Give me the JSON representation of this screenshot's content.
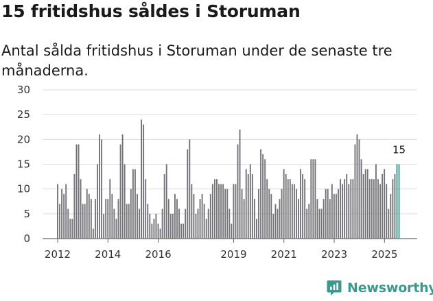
{
  "header": {
    "title": "15 fritidshus såldes i Storuman",
    "subtitle": "Antal sålda fritidshus i Storuman under de senaste tre månaderna."
  },
  "brand": {
    "name": "Newsworthy",
    "icon": "newsworthy-logo-icon",
    "color": "#3a9a8f"
  },
  "chart_data": {
    "type": "bar",
    "title": "15 fritidshus såldes i Storuman",
    "subtitle": "Antal sålda fritidshus i Storuman under de senaste tre månaderna.",
    "xlabel": "",
    "ylabel": "",
    "ylim": [
      0,
      30
    ],
    "yticks": [
      0,
      5,
      10,
      15,
      20,
      25,
      30
    ],
    "grid": true,
    "x_start": 2012.0,
    "x_step": 0.0833,
    "xticks": [
      2012,
      2014,
      2016,
      2019,
      2021,
      2023,
      2025
    ],
    "xtick_labels": [
      "2012",
      "2014",
      "2016",
      "2019",
      "2021",
      "2023",
      "2025"
    ],
    "bar_color": "#737278",
    "highlight_color": "#3a9a8f",
    "highlight_from_index": 162,
    "annotation": {
      "index": 163,
      "text": "15"
    },
    "values": [
      11,
      7,
      10,
      9,
      11,
      6,
      4,
      4,
      13,
      19,
      19,
      12,
      7,
      7,
      10,
      9,
      8,
      2,
      8,
      15,
      21,
      20,
      5,
      8,
      8,
      12,
      9,
      6,
      4,
      8,
      19,
      21,
      15,
      7,
      7,
      10,
      14,
      14,
      9,
      6,
      24,
      23,
      12,
      7,
      5,
      3,
      4,
      5,
      3,
      2,
      6,
      13,
      15,
      8,
      5,
      5,
      9,
      8,
      6,
      3,
      3,
      6,
      18,
      20,
      11,
      9,
      5,
      6,
      8,
      9,
      7,
      4,
      6,
      9,
      11,
      12,
      12,
      11,
      11,
      11,
      10,
      10,
      6,
      3,
      11,
      11,
      19,
      22,
      10,
      8,
      14,
      13,
      15,
      13,
      8,
      4,
      10,
      18,
      17,
      16,
      12,
      10,
      9,
      5,
      7,
      6,
      8,
      10,
      14,
      13,
      12,
      12,
      11,
      11,
      10,
      8,
      14,
      13,
      12,
      6,
      7,
      16,
      16,
      16,
      8,
      6,
      6,
      8,
      10,
      10,
      8,
      11,
      9,
      9,
      10,
      12,
      11,
      12,
      13,
      11,
      12,
      12,
      19,
      21,
      20,
      16,
      13,
      14,
      14,
      12,
      12,
      12,
      15,
      12,
      11,
      13,
      14,
      11,
      6,
      9,
      12,
      13,
      15,
      15
    ]
  }
}
